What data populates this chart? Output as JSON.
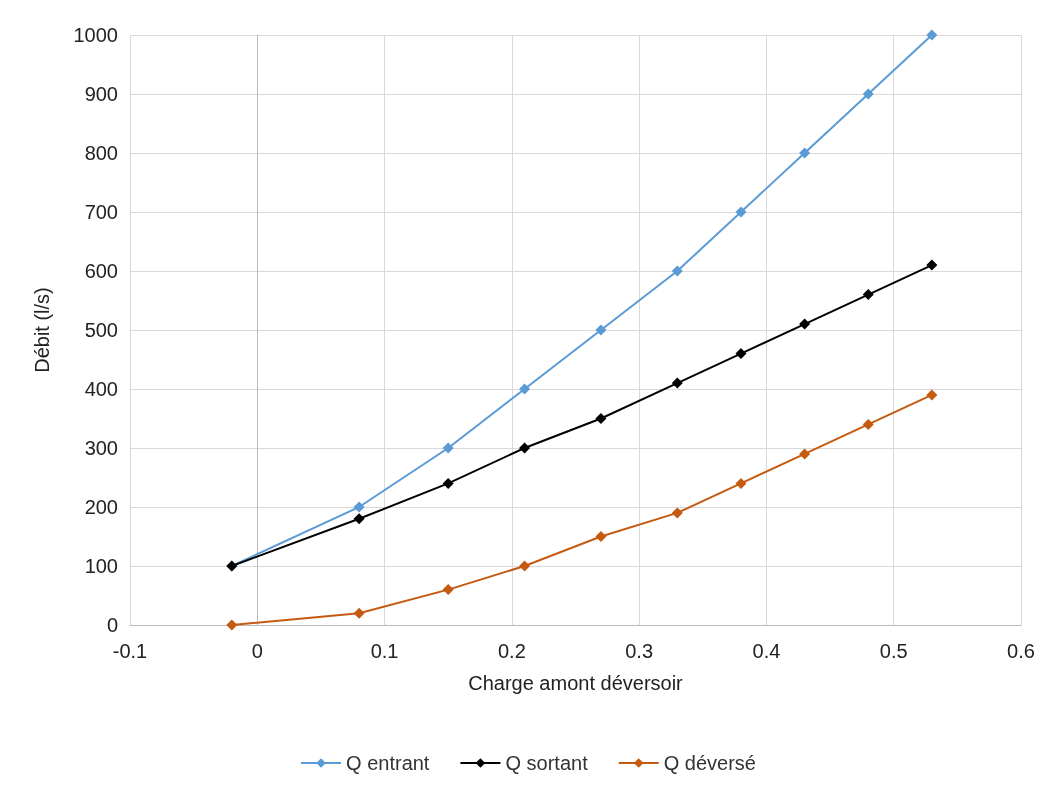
{
  "chart_data": {
    "type": "line",
    "xlabel": "Charge amont déversoir",
    "ylabel": "Débit (l/s)",
    "x": [
      -0.02,
      0.08,
      0.15,
      0.21,
      0.27,
      0.33,
      0.38,
      0.43,
      0.48,
      0.53
    ],
    "series": [
      {
        "name": "Q entrant",
        "color": "#5b9bd5",
        "values": [
          100,
          200,
          300,
          400,
          500,
          600,
          700,
          800,
          900,
          1000
        ]
      },
      {
        "name": "Q sortant",
        "color": "#000000",
        "values": [
          100,
          180,
          240,
          300,
          350,
          410,
          460,
          510,
          560,
          610
        ]
      },
      {
        "name": "Q déversé",
        "color": "#c55a11",
        "values": [
          0,
          20,
          60,
          100,
          150,
          190,
          240,
          290,
          340,
          390
        ]
      }
    ],
    "xlim": [
      -0.1,
      0.6
    ],
    "xticks": [
      -0.1,
      0,
      0.1,
      0.2,
      0.3,
      0.4,
      0.5,
      0.6
    ],
    "ylim": [
      0,
      1000
    ],
    "yticks": [
      0,
      100,
      200,
      300,
      400,
      500,
      600,
      700,
      800,
      900,
      1000
    ],
    "grid": true,
    "legend": "bottom",
    "marker": "diamond",
    "line_style": "solid"
  }
}
